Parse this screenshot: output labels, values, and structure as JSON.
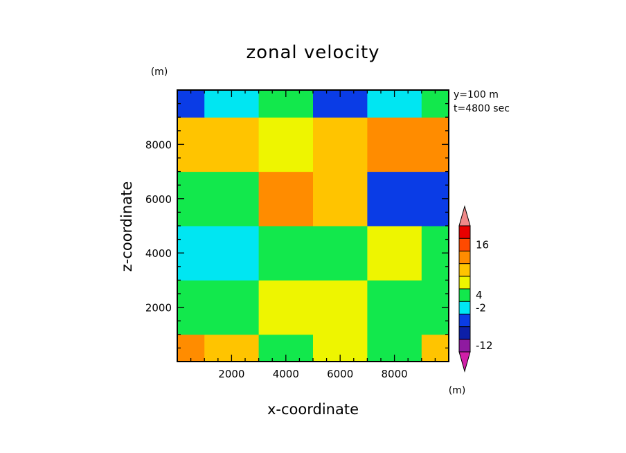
{
  "chart_data": {
    "type": "heatmap",
    "title": "zonal velocity",
    "xlabel": "x-coordinate",
    "ylabel": "z-coordinate",
    "unit_label": "(m)",
    "colorbar_unit_label": "(m)",
    "annotations": [
      "y=100 m",
      "t=4800 sec"
    ],
    "xlim": [
      0,
      10000
    ],
    "ylim": [
      0,
      10000
    ],
    "xticks": [
      2000,
      4000,
      6000,
      8000
    ],
    "yticks": [
      2000,
      4000,
      6000,
      8000
    ],
    "xtick_labels": [
      "2000",
      "4000",
      "6000",
      "8000"
    ],
    "ytick_labels": [
      "2000",
      "4000",
      "6000",
      "8000"
    ],
    "colorbar": {
      "colors": [
        "#d11fa8",
        "#8f1aa0",
        "#0d1fa8",
        "#0a3ce6",
        "#00e6f2",
        "#12e84c",
        "#eef500",
        "#ffc400",
        "#ff8c00",
        "#ff4a00",
        "#e80000",
        "#f08a8a"
      ],
      "labels": [
        {
          "text": "16",
          "value": 16
        },
        {
          "text": "4",
          "value": 4
        },
        {
          "text": "-2",
          "value": -2
        },
        {
          "text": "-12",
          "value": -12
        }
      ],
      "label_positions": [
        9.5,
        5.5,
        4.5,
        1.5
      ]
    },
    "field": {
      "x": [
        0,
        2000,
        4000,
        6000,
        8000,
        10000
      ],
      "z": [
        0,
        2000,
        4000,
        6000,
        8000,
        10000
      ],
      "color_classes": [
        [
          "#ff8c00",
          "#ffc400",
          "#12e84c",
          "#eef500",
          "#12e84c",
          "#ffc400"
        ],
        [
          "#12e84c",
          "#12e84c",
          "#eef500",
          "#eef500",
          "#12e84c",
          "#12e84c"
        ],
        [
          "#00e6f2",
          "#00e6f2",
          "#12e84c",
          "#12e84c",
          "#eef500",
          "#12e84c"
        ],
        [
          "#12e84c",
          "#12e84c",
          "#ff8c00",
          "#ffc400",
          "#0a3ce6",
          "#0a3ce6"
        ],
        [
          "#ffc400",
          "#ffc400",
          "#eef500",
          "#ffc400",
          "#ff8c00",
          "#ff8c00"
        ],
        [
          "#0a3ce6",
          "#00e6f2",
          "#12e84c",
          "#0a3ce6",
          "#00e6f2",
          "#12e84c"
        ]
      ]
    }
  }
}
